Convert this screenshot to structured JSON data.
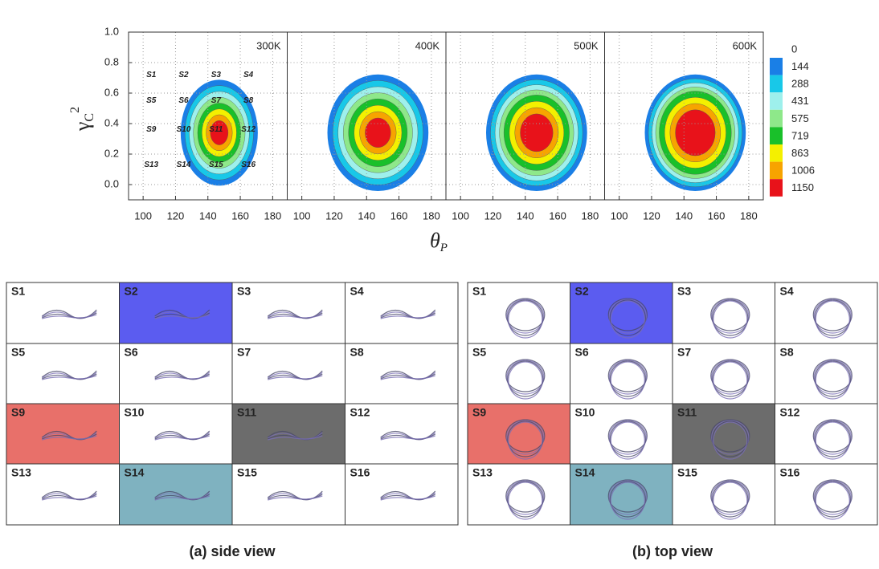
{
  "contour": {
    "y_label": {
      "symbol": "γ",
      "sub": "C",
      "sup": "2"
    },
    "x_label": {
      "symbol": "θ",
      "sub": "P"
    },
    "panels": [
      "300K",
      "400K",
      "500K",
      "600K"
    ],
    "xlim": [
      91,
      189
    ],
    "xticks": [
      100,
      120,
      140,
      160,
      180
    ],
    "ylim": [
      -0.1,
      1.0
    ],
    "yticks": [
      {
        "value": 0,
        "label": "0.0"
      },
      {
        "value": 0.2,
        "label": "0.2"
      },
      {
        "value": 0.4,
        "label": "0.4"
      },
      {
        "value": 0.6,
        "label": "0.6"
      },
      {
        "value": 0.8,
        "label": "0.8"
      },
      {
        "value": 1,
        "label": "1.0"
      }
    ],
    "grid": true,
    "state_labels": [
      "S1",
      "S2",
      "S3",
      "S4",
      "S5",
      "S6",
      "S7",
      "S8",
      "S9",
      "S10",
      "S11",
      "S12",
      "S13",
      "S14",
      "S15",
      "S16"
    ],
    "colorbar": {
      "levels": [
        0,
        144,
        288,
        431,
        575,
        719,
        863,
        1006,
        1150
      ],
      "colors": [
        "#1a7fe6",
        "#18c8e8",
        "#9ef0ec",
        "#8ee88a",
        "#19c02a",
        "#f4f000",
        "#f7a400",
        "#e8121a"
      ]
    }
  },
  "views": [
    {
      "caption": "(a) side view",
      "cells": [
        {
          "label": "S1"
        },
        {
          "label": "S2",
          "highlight": "#5b5cf0"
        },
        {
          "label": "S3"
        },
        {
          "label": "S4"
        },
        {
          "label": "S5"
        },
        {
          "label": "S6"
        },
        {
          "label": "S7"
        },
        {
          "label": "S8"
        },
        {
          "label": "S9",
          "highlight": "#e8706a"
        },
        {
          "label": "S10"
        },
        {
          "label": "S11",
          "highlight": "#6c6c6c"
        },
        {
          "label": "S12"
        },
        {
          "label": "S13"
        },
        {
          "label": "S14",
          "highlight": "#7fb2c0"
        },
        {
          "label": "S15"
        },
        {
          "label": "S16"
        }
      ]
    },
    {
      "caption": "(b) top view",
      "cells": [
        {
          "label": "S1"
        },
        {
          "label": "S2",
          "highlight": "#5b5cf0"
        },
        {
          "label": "S3"
        },
        {
          "label": "S4"
        },
        {
          "label": "S5"
        },
        {
          "label": "S6"
        },
        {
          "label": "S7"
        },
        {
          "label": "S8"
        },
        {
          "label": "S9",
          "highlight": "#e8706a"
        },
        {
          "label": "S10"
        },
        {
          "label": "S11",
          "highlight": "#6c6c6c"
        },
        {
          "label": "S12"
        },
        {
          "label": "S13"
        },
        {
          "label": "S14",
          "highlight": "#7fb2c0"
        },
        {
          "label": "S15"
        },
        {
          "label": "S16"
        }
      ]
    }
  ]
}
